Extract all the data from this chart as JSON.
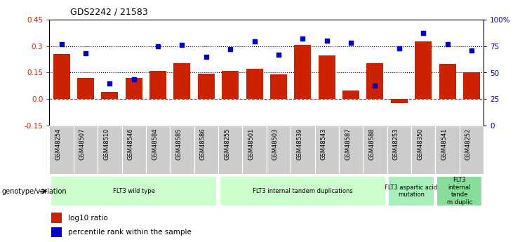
{
  "title": "GDS2242 / 21583",
  "samples": [
    "GSM48254",
    "GSM48507",
    "GSM48510",
    "GSM48546",
    "GSM48584",
    "GSM48585",
    "GSM48586",
    "GSM48255",
    "GSM48501",
    "GSM48503",
    "GSM48539",
    "GSM48543",
    "GSM48587",
    "GSM48588",
    "GSM48253",
    "GSM48350",
    "GSM48541",
    "GSM48252"
  ],
  "log10_ratio": [
    0.255,
    0.12,
    0.04,
    0.12,
    0.16,
    0.205,
    0.145,
    0.16,
    0.17,
    0.14,
    0.305,
    0.245,
    0.05,
    0.205,
    -0.02,
    0.325,
    0.2,
    0.15
  ],
  "percentile_rank": [
    77,
    68,
    40,
    44,
    75,
    76,
    65,
    72,
    79,
    67,
    82,
    80,
    78,
    38,
    73,
    87,
    77,
    71
  ],
  "ylim_left": [
    -0.15,
    0.45
  ],
  "ylim_right": [
    0,
    100
  ],
  "left_ticks": [
    -0.15,
    0.0,
    0.15,
    0.3,
    0.45
  ],
  "right_ticks": [
    0,
    25,
    50,
    75,
    100
  ],
  "right_tick_labels": [
    "0",
    "25",
    "50",
    "75",
    "100%"
  ],
  "hline_values": [
    0.0,
    0.15,
    0.3
  ],
  "hline_styles": [
    "dash_red",
    "dot_black",
    "dot_black"
  ],
  "group_labels": [
    "FLT3 wild type",
    "FLT3 internal tandem duplications",
    "FLT3 aspartic acid\nmutation",
    "FLT3\ninternal\ntande\nm duplic"
  ],
  "group_ranges": [
    [
      0,
      7
    ],
    [
      7,
      14
    ],
    [
      14,
      16
    ],
    [
      16,
      18
    ]
  ],
  "group_colors": [
    "#ccffcc",
    "#ccffcc",
    "#aaeebb",
    "#88dd99"
  ],
  "bar_color": "#cc2200",
  "dot_color": "#0000cc",
  "background_color": "#ffffff",
  "legend_items": [
    "log10 ratio",
    "percentile rank within the sample"
  ],
  "legend_colors": [
    "#cc2200",
    "#0000cc"
  ],
  "genotype_label": "genotype/variation",
  "tick_label_bg": "#cccccc"
}
